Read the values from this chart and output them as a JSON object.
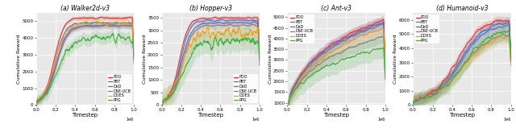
{
  "subplots": [
    {
      "title": "(a) Walker2d-v3",
      "xlabel": "Timestep",
      "ylabel": "Cumulative Reward",
      "xlim": [
        0,
        1.0
      ],
      "ylim": [
        0,
        5500
      ],
      "yticks": [
        0,
        1000,
        2000,
        3000,
        4000,
        5000
      ],
      "xticks": [
        0.0,
        0.2,
        0.4,
        0.6,
        0.8,
        1.0
      ],
      "legend_loc": "lower right"
    },
    {
      "title": "(b) Hopper-v3",
      "xlabel": "Timestep",
      "ylabel": "Cumulative Reward",
      "xlim": [
        0,
        1.0
      ],
      "ylim": [
        0,
        3700
      ],
      "yticks": [
        0,
        500,
        1000,
        1500,
        2000,
        2500,
        3000,
        3500
      ],
      "xticks": [
        0.0,
        0.2,
        0.4,
        0.6,
        0.8,
        1.0
      ],
      "legend_loc": "lower right"
    },
    {
      "title": "(c) Ant-v3",
      "xlabel": "Timestep",
      "ylabel": "Cumulative Reward",
      "xlim": [
        0,
        1.0
      ],
      "ylim": [
        900,
        5200
      ],
      "yticks": [
        1000,
        1500,
        2000,
        2500,
        3000,
        3500,
        4000,
        4500,
        5000
      ],
      "xticks": [
        0.0,
        0.2,
        0.4,
        0.6,
        0.8,
        1.0
      ],
      "legend_loc": "upper left"
    },
    {
      "title": "(d) Humanoid-v3",
      "xlabel": "Timestep",
      "ylabel": "Cumulative Reward",
      "xlim": [
        0,
        1.0
      ],
      "ylim": [
        0,
        6500
      ],
      "yticks": [
        0,
        1000,
        2000,
        3000,
        4000,
        5000,
        6000
      ],
      "xticks": [
        0.0,
        0.2,
        0.4,
        0.6,
        0.8,
        1.0
      ],
      "legend_loc": "upper left"
    }
  ],
  "algorithms": [
    "PDO",
    "PBT",
    "DxD",
    "DSE-UCB",
    "DDES",
    "PPG"
  ],
  "colors": {
    "PDO": "#e8312a",
    "PBT": "#3a7ebf",
    "DxD": "#7060bb",
    "DSE-UCB": "#808080",
    "DDES": "#e8a020",
    "PPG": "#40b040"
  },
  "background_color": "#e8e8e8",
  "fig_background": "#ffffff",
  "xlabel_suffix": "1e6"
}
